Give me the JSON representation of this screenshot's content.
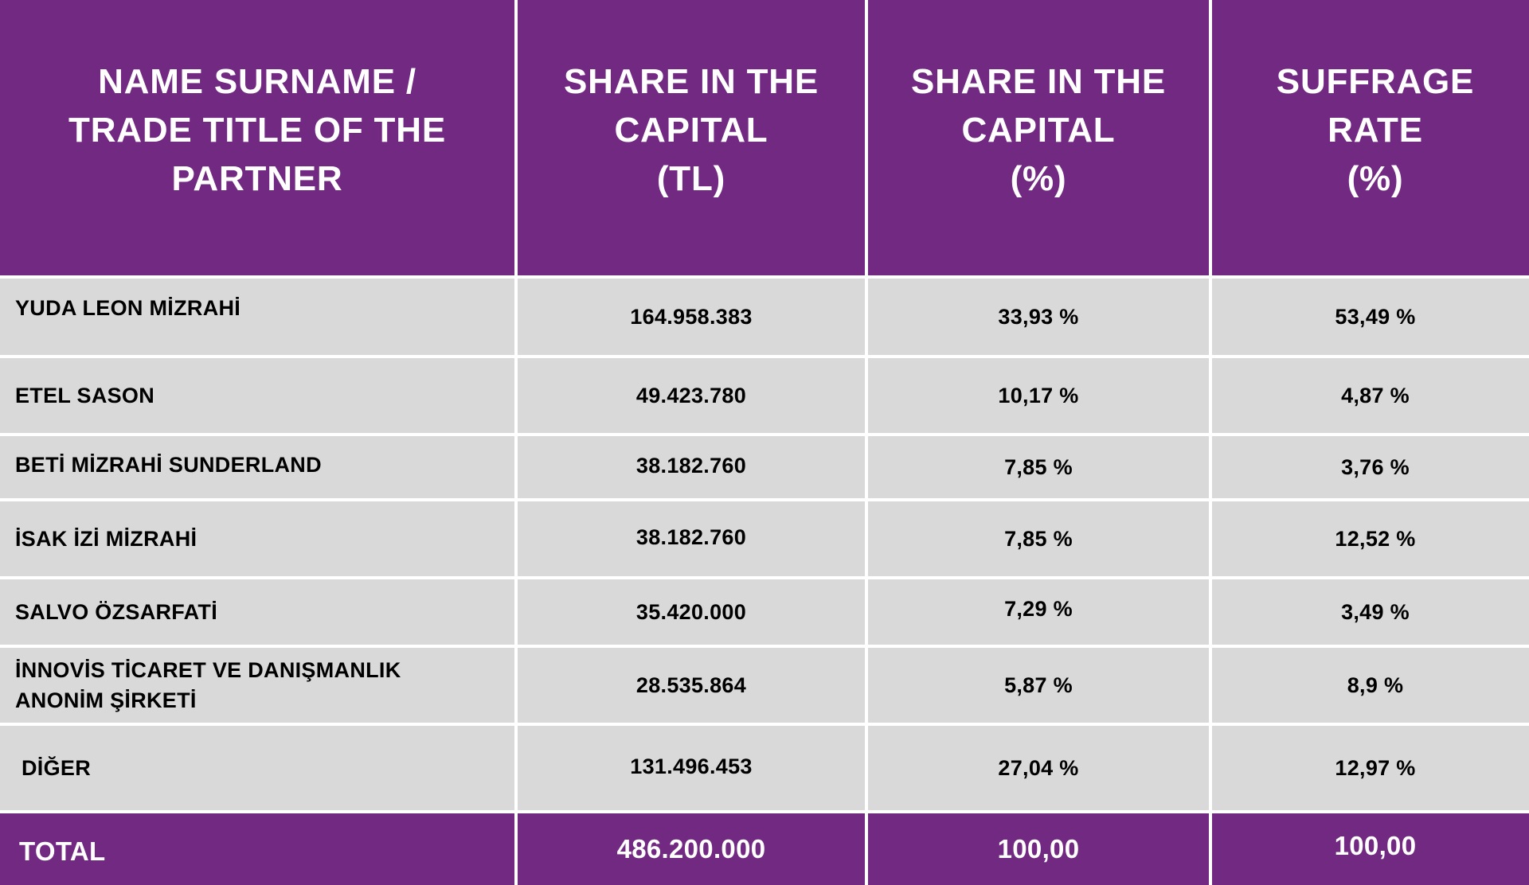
{
  "table": {
    "headers": [
      "NAME SURNAME /\nTRADE TITLE OF THE\nPARTNER",
      "SHARE IN THE\nCAPITAL\n(TL)",
      "SHARE IN THE\nCAPITAL\n(%)",
      "SUFFRAGE\nRATE\n(%)"
    ],
    "rows": [
      {
        "name": "YUDA LEON MİZRAHİ",
        "capital_tl": "164.958.383",
        "capital_pct": "33,93 %",
        "suffrage": "53,49 %"
      },
      {
        "name": "ETEL SASON",
        "capital_tl": "49.423.780",
        "capital_pct": "10,17 %",
        "suffrage": "4,87 %"
      },
      {
        "name": "BETİ MİZRAHİ SUNDERLAND",
        "capital_tl": "38.182.760",
        "capital_pct": "7,85 %",
        "suffrage": "3,76 %"
      },
      {
        "name": "İSAK İZİ MİZRAHİ",
        "capital_tl": "38.182.760",
        "capital_pct": "7,85 %",
        "suffrage": "12,52 %"
      },
      {
        "name": "SALVO ÖZSARFATİ",
        "capital_tl": "35.420.000",
        "capital_pct": "7,29 %",
        "suffrage": "3,49 %"
      },
      {
        "name": "İNNOVİS TİCARET VE DANIŞMANLIK ANONİM ŞİRKETİ",
        "capital_tl": "28.535.864",
        "capital_pct": "5,87 %",
        "suffrage": "8,9 %"
      },
      {
        "name": "DİĞER",
        "capital_tl": "131.496.453",
        "capital_pct": "27,04 %",
        "suffrage": "12,97 %"
      }
    ],
    "total": {
      "label": "TOTAL",
      "capital_tl": "486.200.000",
      "capital_pct": "100,00",
      "suffrage": "100,00"
    }
  },
  "colors": {
    "header_bg": "#722982",
    "row_bg": "#d9d9d9",
    "divider": "#ffffff"
  }
}
